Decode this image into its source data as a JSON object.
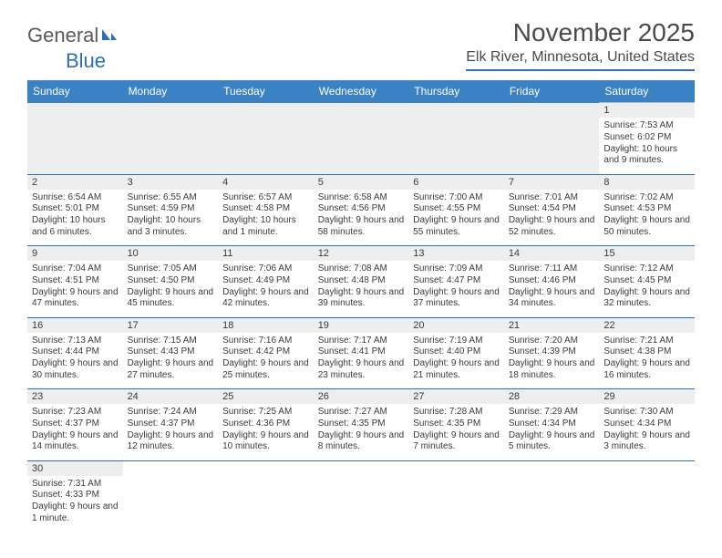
{
  "logo": {
    "text1": "General",
    "text2": "Blue"
  },
  "title": "November 2025",
  "location": "Elk River, Minnesota, United States",
  "colors": {
    "header_bg": "#3b82c4",
    "header_text": "#ffffff",
    "accent_line": "#2d6fb5",
    "daynum_bg": "#eeeeee",
    "cell_border": "#bcbcbc",
    "text": "#3a3a3a",
    "title_text": "#4a4a4a"
  },
  "typography": {
    "title_fontsize": 28,
    "location_fontsize": 16,
    "dayheader_fontsize": 12,
    "daynum_fontsize": 11,
    "cell_fontsize": 10
  },
  "day_headers": [
    "Sunday",
    "Monday",
    "Tuesday",
    "Wednesday",
    "Thursday",
    "Friday",
    "Saturday"
  ],
  "weeks": [
    [
      null,
      null,
      null,
      null,
      null,
      null,
      {
        "n": "1",
        "sunrise": "7:53 AM",
        "sunset": "6:02 PM",
        "daylight": "10 hours and 9 minutes."
      }
    ],
    [
      {
        "n": "2",
        "sunrise": "6:54 AM",
        "sunset": "5:01 PM",
        "daylight": "10 hours and 6 minutes."
      },
      {
        "n": "3",
        "sunrise": "6:55 AM",
        "sunset": "4:59 PM",
        "daylight": "10 hours and 3 minutes."
      },
      {
        "n": "4",
        "sunrise": "6:57 AM",
        "sunset": "4:58 PM",
        "daylight": "10 hours and 1 minute."
      },
      {
        "n": "5",
        "sunrise": "6:58 AM",
        "sunset": "4:56 PM",
        "daylight": "9 hours and 58 minutes."
      },
      {
        "n": "6",
        "sunrise": "7:00 AM",
        "sunset": "4:55 PM",
        "daylight": "9 hours and 55 minutes."
      },
      {
        "n": "7",
        "sunrise": "7:01 AM",
        "sunset": "4:54 PM",
        "daylight": "9 hours and 52 minutes."
      },
      {
        "n": "8",
        "sunrise": "7:02 AM",
        "sunset": "4:53 PM",
        "daylight": "9 hours and 50 minutes."
      }
    ],
    [
      {
        "n": "9",
        "sunrise": "7:04 AM",
        "sunset": "4:51 PM",
        "daylight": "9 hours and 47 minutes."
      },
      {
        "n": "10",
        "sunrise": "7:05 AM",
        "sunset": "4:50 PM",
        "daylight": "9 hours and 45 minutes."
      },
      {
        "n": "11",
        "sunrise": "7:06 AM",
        "sunset": "4:49 PM",
        "daylight": "9 hours and 42 minutes."
      },
      {
        "n": "12",
        "sunrise": "7:08 AM",
        "sunset": "4:48 PM",
        "daylight": "9 hours and 39 minutes."
      },
      {
        "n": "13",
        "sunrise": "7:09 AM",
        "sunset": "4:47 PM",
        "daylight": "9 hours and 37 minutes."
      },
      {
        "n": "14",
        "sunrise": "7:11 AM",
        "sunset": "4:46 PM",
        "daylight": "9 hours and 34 minutes."
      },
      {
        "n": "15",
        "sunrise": "7:12 AM",
        "sunset": "4:45 PM",
        "daylight": "9 hours and 32 minutes."
      }
    ],
    [
      {
        "n": "16",
        "sunrise": "7:13 AM",
        "sunset": "4:44 PM",
        "daylight": "9 hours and 30 minutes."
      },
      {
        "n": "17",
        "sunrise": "7:15 AM",
        "sunset": "4:43 PM",
        "daylight": "9 hours and 27 minutes."
      },
      {
        "n": "18",
        "sunrise": "7:16 AM",
        "sunset": "4:42 PM",
        "daylight": "9 hours and 25 minutes."
      },
      {
        "n": "19",
        "sunrise": "7:17 AM",
        "sunset": "4:41 PM",
        "daylight": "9 hours and 23 minutes."
      },
      {
        "n": "20",
        "sunrise": "7:19 AM",
        "sunset": "4:40 PM",
        "daylight": "9 hours and 21 minutes."
      },
      {
        "n": "21",
        "sunrise": "7:20 AM",
        "sunset": "4:39 PM",
        "daylight": "9 hours and 18 minutes."
      },
      {
        "n": "22",
        "sunrise": "7:21 AM",
        "sunset": "4:38 PM",
        "daylight": "9 hours and 16 minutes."
      }
    ],
    [
      {
        "n": "23",
        "sunrise": "7:23 AM",
        "sunset": "4:37 PM",
        "daylight": "9 hours and 14 minutes."
      },
      {
        "n": "24",
        "sunrise": "7:24 AM",
        "sunset": "4:37 PM",
        "daylight": "9 hours and 12 minutes."
      },
      {
        "n": "25",
        "sunrise": "7:25 AM",
        "sunset": "4:36 PM",
        "daylight": "9 hours and 10 minutes."
      },
      {
        "n": "26",
        "sunrise": "7:27 AM",
        "sunset": "4:35 PM",
        "daylight": "9 hours and 8 minutes."
      },
      {
        "n": "27",
        "sunrise": "7:28 AM",
        "sunset": "4:35 PM",
        "daylight": "9 hours and 7 minutes."
      },
      {
        "n": "28",
        "sunrise": "7:29 AM",
        "sunset": "4:34 PM",
        "daylight": "9 hours and 5 minutes."
      },
      {
        "n": "29",
        "sunrise": "7:30 AM",
        "sunset": "4:34 PM",
        "daylight": "9 hours and 3 minutes."
      }
    ],
    [
      {
        "n": "30",
        "sunrise": "7:31 AM",
        "sunset": "4:33 PM",
        "daylight": "9 hours and 1 minute."
      },
      null,
      null,
      null,
      null,
      null,
      null
    ]
  ],
  "labels": {
    "sunrise": "Sunrise:",
    "sunset": "Sunset:",
    "daylight": "Daylight:"
  }
}
